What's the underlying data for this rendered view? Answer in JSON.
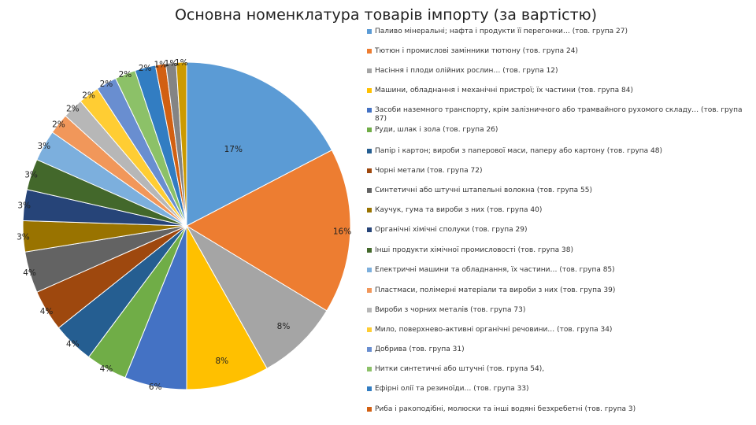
{
  "chart_data": {
    "type": "pie",
    "title": "Основна номенклатура товарів імпорту (за вартістю)",
    "legend_position": "right",
    "slices": [
      {
        "name": "Паливо мінеральні; нафта і продукти її перегонки… (тов. група 27)",
        "value": 17,
        "label": "17%",
        "color": "#5b9bd5"
      },
      {
        "name": "Тютюн і промислові замінники тютюну (тов. група 24)",
        "value": 16,
        "label": "16%",
        "color": "#ed7d31"
      },
      {
        "name": "Насіння і плоди олійних рослин… (тов. група 12)",
        "value": 8,
        "label": "8%",
        "color": "#a5a5a5"
      },
      {
        "name": "Машини, обладнання і механічні пристрої; їх частини (тов. група 84)",
        "value": 8,
        "label": "8%",
        "color": "#ffc000"
      },
      {
        "name": "Засоби наземного транспорту, крім залізничного або трамвайного рухомого складу… (тов. група 87)",
        "value": 6,
        "label": "6%",
        "color": "#4472c4"
      },
      {
        "name": "Руди, шлак і зола (тов. група 26)",
        "value": 4,
        "label": "4%",
        "color": "#70ad47"
      },
      {
        "name": "Папір і картон; вироби з паперової маси, паперу або картону (тов. група 48)",
        "value": 4,
        "label": "4%",
        "color": "#255e91"
      },
      {
        "name": "Чорні метали (тов. група 72)",
        "value": 4,
        "label": "4%",
        "color": "#9e480e"
      },
      {
        "name": "Синтетичні або штучні штапельні волокна (тов. група 55)",
        "value": 4,
        "label": "4%",
        "color": "#636363"
      },
      {
        "name": "Каучук, гума та вироби з них (тов. група 40)",
        "value": 3,
        "label": "3%",
        "color": "#997300"
      },
      {
        "name": "Органічні хімічні сполуки (тов. група 29)",
        "value": 3,
        "label": "3%",
        "color": "#264478"
      },
      {
        "name": "Інші продукти хімічної промисловості (тов. група 38)",
        "value": 3,
        "label": "3%",
        "color": "#43682b"
      },
      {
        "name": "Електричні машини та обладнання, їх частини… (тов. група 85)",
        "value": 3,
        "label": "3%",
        "color": "#7cafdd"
      },
      {
        "name": "Пластмаси, полімерні матеріали та вироби з них (тов. група 39)",
        "value": 2,
        "label": "2%",
        "color": "#f1975a"
      },
      {
        "name": "Вироби з чорних металів (тов. група 73)",
        "value": 2,
        "label": "2%",
        "color": "#b7b7b7"
      },
      {
        "name": "Мило, поверхнево-активні органічні речовини… (тов. група 34)",
        "value": 2,
        "label": "2%",
        "color": "#ffcd33"
      },
      {
        "name": "Добрива (тов. група 31)",
        "value": 2,
        "label": "2%",
        "color": "#698ed0"
      },
      {
        "name": "Нитки синтетичні або штучні (тов. група 54),",
        "value": 2,
        "label": "2%",
        "color": "#8cc168"
      },
      {
        "name": "Ефірні олії та резиноїди… (тов. група 33)",
        "value": 2,
        "label": "2%",
        "color": "#327dc2"
      },
      {
        "name": "Риба і ракоподібні, молюски та інші водяні безхребетні (тов. група 3)",
        "value": 1,
        "label": "1%",
        "color": "#d26012"
      },
      {
        "name": "",
        "value": 1,
        "label": "1%",
        "color": "#848484"
      },
      {
        "name": "",
        "value": 1,
        "label": "1%",
        "color": "#cc9a00"
      }
    ]
  }
}
